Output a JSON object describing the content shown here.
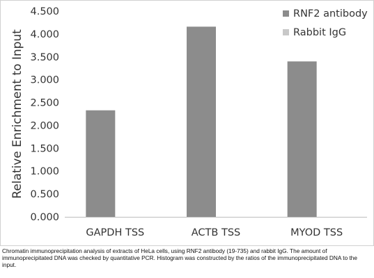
{
  "chart_data": {
    "type": "bar",
    "title": "",
    "xlabel": "",
    "ylabel": "Relative Enrichment to Input",
    "categories": [
      "GAPDH TSS",
      "ACTB TSS",
      "MYOD TSS"
    ],
    "series": [
      {
        "name": "RNF2 antibody",
        "color": "#8c8c8c",
        "values": [
          2.33,
          4.16,
          3.4
        ]
      },
      {
        "name": "Rabbit IgG",
        "color": "#c8c8c8",
        "values": [
          0.0,
          0.0,
          0.0
        ]
      }
    ],
    "ylim": [
      0,
      4.5
    ],
    "yticks": [
      "0.000",
      "0.500",
      "1.000",
      "1.500",
      "2.000",
      "2.500",
      "3.000",
      "3.500",
      "4.000",
      "4.500"
    ],
    "ytick_values": [
      0,
      0.5,
      1,
      1.5,
      2,
      2.5,
      3,
      3.5,
      4,
      4.5
    ],
    "grid": false,
    "legend_position": "top-right"
  },
  "caption": "Chromatin immunoprecipitation analysis of extracts of HeLa cells, using RNF2 antibody (19-735) and rabbit IgG. The amount of immunoprecipitated DNA was checked by quantitative PCR. Histogram was constructed by the ratios of the immunoprecipitated DNA to the input."
}
